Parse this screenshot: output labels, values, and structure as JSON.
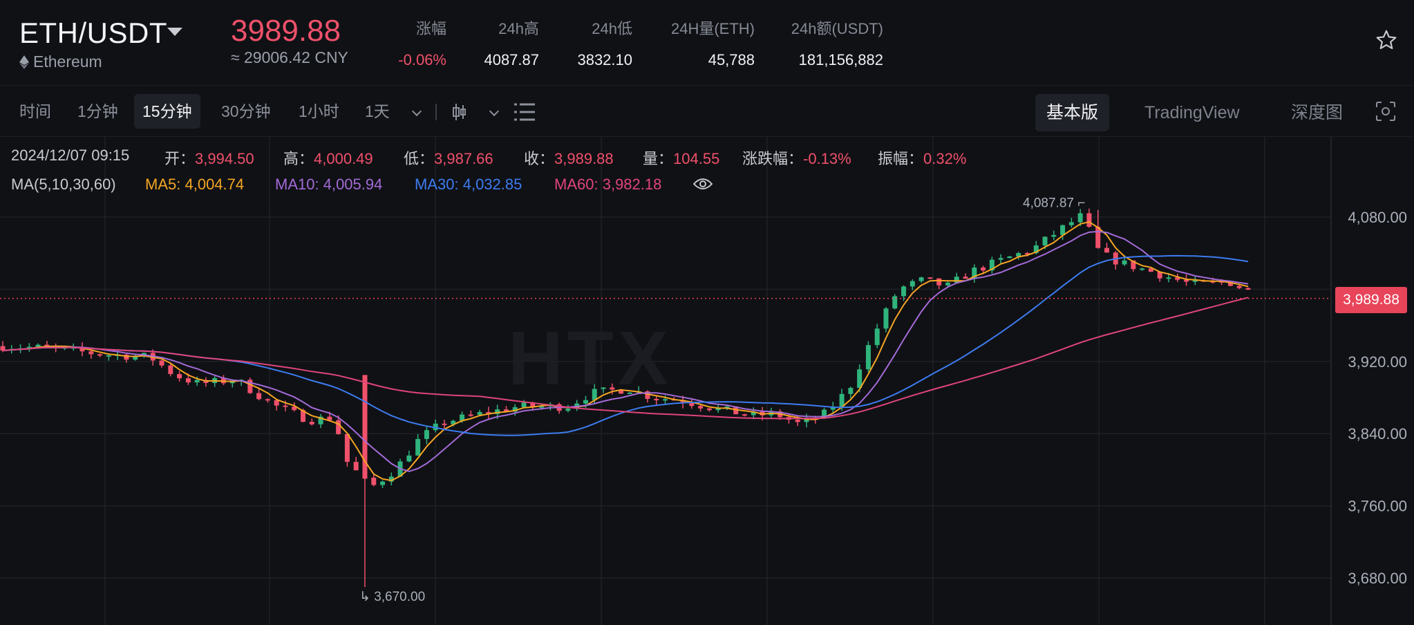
{
  "header": {
    "pair": "ETH/USDT",
    "asset_name": "Ethereum",
    "last_price": "3989.88",
    "cny_price": "≈ 29006.42 CNY",
    "stats": [
      {
        "label": "涨幅",
        "value": "-0.06%",
        "red": true
      },
      {
        "label": "24h高",
        "value": "4087.87",
        "red": false
      },
      {
        "label": "24h低",
        "value": "3832.10",
        "red": false
      },
      {
        "label": "24H量(ETH)",
        "value": "45,788",
        "red": false
      },
      {
        "label": "24h额(USDT)",
        "value": "181,156,882",
        "red": false
      }
    ]
  },
  "toolbar": {
    "timeframes": [
      "时间",
      "1分钟",
      "15分钟",
      "30分钟",
      "1小时",
      "1天"
    ],
    "active_timeframe": "15分钟",
    "views": [
      "基本版",
      "TradingView",
      "深度图"
    ],
    "active_view": "基本版"
  },
  "ohlc": {
    "date": "2024/12/07 09:15",
    "open_label": "开：",
    "open": "3,994.50",
    "high_label": "高：",
    "high": "4,000.49",
    "low_label": "低：",
    "low": "3,987.66",
    "close_label": "收：",
    "close": "3,989.88",
    "vol_label": "量：",
    "vol": "104.55",
    "chg_label": "涨跌幅：",
    "chg": "-0.13%",
    "amp_label": "振幅：",
    "amp": "0.32%"
  },
  "ma": {
    "label": "MA(5,10,30,60)",
    "items": [
      {
        "name": "MA5:",
        "value": "4,004.74",
        "color": "#f5a623"
      },
      {
        "name": "MA10:",
        "value": "4,005.94",
        "color": "#a36bd8"
      },
      {
        "name": "MA30:",
        "value": "4,032.85",
        "color": "#3d7cf0"
      },
      {
        "name": "MA60:",
        "value": "3,982.18",
        "color": "#e0457b"
      }
    ]
  },
  "watermark": "HTX",
  "colors": {
    "up": "#2fb47c",
    "down": "#f0516b",
    "background": "#101115"
  },
  "chart_data": {
    "type": "candlestick",
    "y_ticks": [
      "4,080.00",
      "3,920.00",
      "3,840.00",
      "3,760.00",
      "3,680.00"
    ],
    "y_range": [
      3640,
      4130
    ],
    "current_price_label": "3,989.88",
    "high_marker": "4,087.87",
    "low_marker": "3,670.00",
    "ma_lines": [
      "MA5",
      "MA10",
      "MA30",
      "MA60"
    ]
  }
}
